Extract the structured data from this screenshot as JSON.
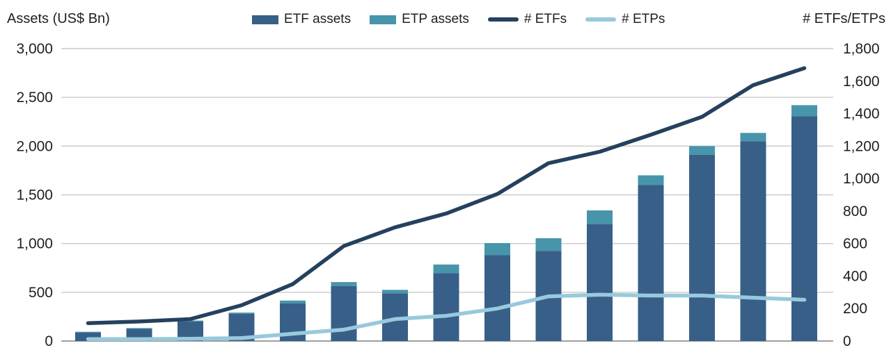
{
  "header": {
    "left_axis_title": "Assets (US$ Bn)",
    "right_axis_title": "# ETFs/ETPs"
  },
  "legend": [
    {
      "label": "ETF assets",
      "type": "bar",
      "color": "#375f88"
    },
    {
      "label": "ETP assets",
      "type": "bar",
      "color": "#4795aa"
    },
    {
      "label": "# ETFs",
      "type": "line",
      "color": "#24415e"
    },
    {
      "label": "# ETPs",
      "type": "line",
      "color": "#98c9dd"
    }
  ],
  "chart_data": {
    "type": "combo-bar-line",
    "num_periods": 15,
    "x_tick_labels_visible": false,
    "series": [
      {
        "name": "ETF assets",
        "type": "bar",
        "stack": "assets",
        "axis": "left",
        "color": "#375f88",
        "values": [
          88,
          125,
          200,
          280,
          385,
          565,
          490,
          695,
          880,
          925,
          1200,
          1600,
          1910,
          2050,
          2305
        ]
      },
      {
        "name": "ETP assets",
        "type": "bar",
        "stack": "assets",
        "axis": "left",
        "color": "#4795aa",
        "values": [
          7,
          8,
          10,
          12,
          30,
          40,
          35,
          90,
          125,
          130,
          140,
          100,
          90,
          85,
          115
        ]
      },
      {
        "name": "# ETFs",
        "type": "line",
        "axis": "right",
        "color": "#24415e",
        "values": [
          110,
          120,
          135,
          220,
          350,
          585,
          700,
          785,
          905,
          1095,
          1165,
          1270,
          1380,
          1575,
          1680
        ]
      },
      {
        "name": "# ETPs",
        "type": "line",
        "axis": "right",
        "color": "#98c9dd",
        "values": [
          12,
          12,
          14,
          18,
          45,
          70,
          135,
          155,
          200,
          275,
          285,
          280,
          280,
          267,
          254
        ]
      }
    ],
    "left_axis": {
      "title": "Assets (US$ Bn)",
      "min": 0,
      "max": 3000,
      "tick_values": [
        0,
        500,
        1000,
        1500,
        2000,
        2500,
        3000
      ],
      "ticks": [
        "0",
        "500",
        "1,000",
        "1,500",
        "2,000",
        "2,500",
        "3,000"
      ]
    },
    "right_axis": {
      "title": "# ETFs/ETPs",
      "min": 0,
      "max": 1800,
      "tick_values": [
        0,
        200,
        400,
        600,
        800,
        1000,
        1200,
        1400,
        1600,
        1800
      ],
      "ticks": [
        "0",
        "200",
        "400",
        "600",
        "800",
        "1,000",
        "1,200",
        "1,400",
        "1,600",
        "1,800"
      ]
    },
    "grid": {
      "horizontal": true,
      "follows": "left_axis"
    },
    "legend_position": "top",
    "colors": {
      "gridline": "#c9c9c9",
      "baseline": "#9e9e9e",
      "text": "#1f1f1f",
      "background": "#ffffff"
    }
  }
}
